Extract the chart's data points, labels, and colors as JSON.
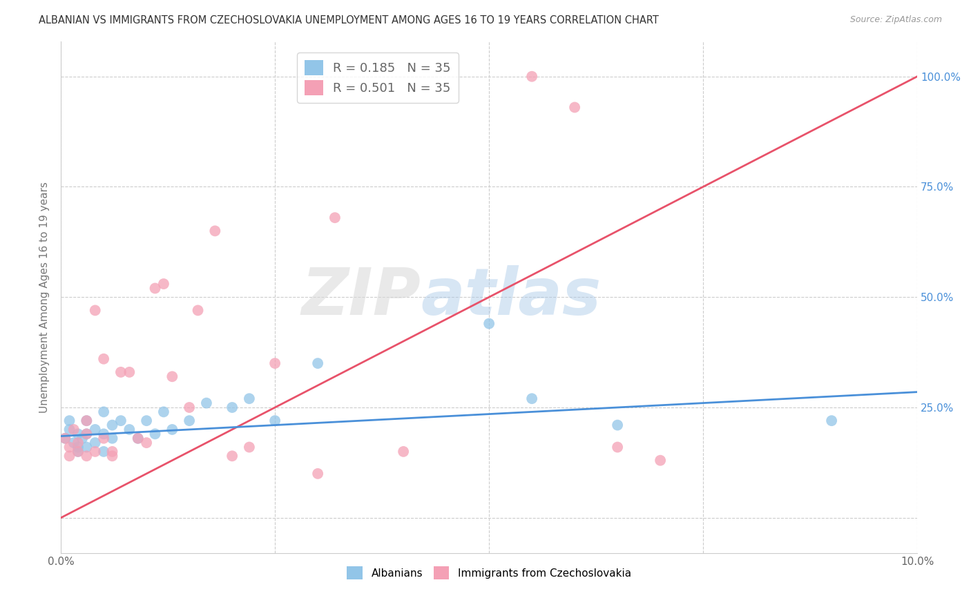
{
  "title": "ALBANIAN VS IMMIGRANTS FROM CZECHOSLOVAKIA UNEMPLOYMENT AMONG AGES 16 TO 19 YEARS CORRELATION CHART",
  "source": "Source: ZipAtlas.com",
  "ylabel": "Unemployment Among Ages 16 to 19 years",
  "blue_R": 0.185,
  "blue_N": 35,
  "pink_R": 0.501,
  "pink_N": 35,
  "blue_color": "#92C5E8",
  "pink_color": "#F4A0B5",
  "blue_line_color": "#4A90D9",
  "pink_line_color": "#E8526A",
  "watermark_zip": "ZIP",
  "watermark_atlas": "atlas",
  "xlim": [
    0.0,
    0.1
  ],
  "ylim": [
    -0.08,
    1.08
  ],
  "background_color": "#FFFFFF",
  "grid_color": "#CCCCCC",
  "blue_points_x": [
    0.0005,
    0.001,
    0.001,
    0.0015,
    0.002,
    0.002,
    0.002,
    0.0025,
    0.003,
    0.003,
    0.003,
    0.004,
    0.004,
    0.005,
    0.005,
    0.005,
    0.006,
    0.006,
    0.007,
    0.008,
    0.009,
    0.01,
    0.011,
    0.012,
    0.013,
    0.015,
    0.017,
    0.02,
    0.022,
    0.025,
    0.03,
    0.05,
    0.055,
    0.065,
    0.09
  ],
  "blue_points_y": [
    0.18,
    0.22,
    0.2,
    0.17,
    0.19,
    0.16,
    0.15,
    0.18,
    0.22,
    0.19,
    0.16,
    0.2,
    0.17,
    0.24,
    0.19,
    0.15,
    0.21,
    0.18,
    0.22,
    0.2,
    0.18,
    0.22,
    0.19,
    0.24,
    0.2,
    0.22,
    0.26,
    0.25,
    0.27,
    0.22,
    0.35,
    0.44,
    0.27,
    0.21,
    0.22
  ],
  "pink_points_x": [
    0.0005,
    0.001,
    0.001,
    0.0015,
    0.002,
    0.002,
    0.003,
    0.003,
    0.003,
    0.004,
    0.004,
    0.005,
    0.005,
    0.006,
    0.006,
    0.007,
    0.008,
    0.009,
    0.01,
    0.011,
    0.012,
    0.013,
    0.015,
    0.016,
    0.018,
    0.02,
    0.022,
    0.025,
    0.03,
    0.032,
    0.04,
    0.055,
    0.06,
    0.065,
    0.07
  ],
  "pink_points_y": [
    0.18,
    0.16,
    0.14,
    0.2,
    0.17,
    0.15,
    0.22,
    0.19,
    0.14,
    0.47,
    0.15,
    0.36,
    0.18,
    0.15,
    0.14,
    0.33,
    0.33,
    0.18,
    0.17,
    0.52,
    0.53,
    0.32,
    0.25,
    0.47,
    0.65,
    0.14,
    0.16,
    0.35,
    0.1,
    0.68,
    0.15,
    1.0,
    0.93,
    0.16,
    0.13
  ],
  "pink_line_x0": 0.0,
  "pink_line_y0": 0.0,
  "pink_line_x1": 0.1,
  "pink_line_y1": 1.0,
  "blue_line_x0": 0.0,
  "blue_line_y0": 0.185,
  "blue_line_x1": 0.1,
  "blue_line_y1": 0.285,
  "y_ticks": [
    0.0,
    0.25,
    0.5,
    0.75,
    1.0
  ],
  "y_tick_labels": [
    "",
    "25.0%",
    "50.0%",
    "75.0%",
    "100.0%"
  ],
  "x_ticks": [
    0.0,
    0.025,
    0.05,
    0.075,
    0.1
  ],
  "x_tick_labels": [
    "0.0%",
    "",
    "",
    "",
    "10.0%"
  ]
}
